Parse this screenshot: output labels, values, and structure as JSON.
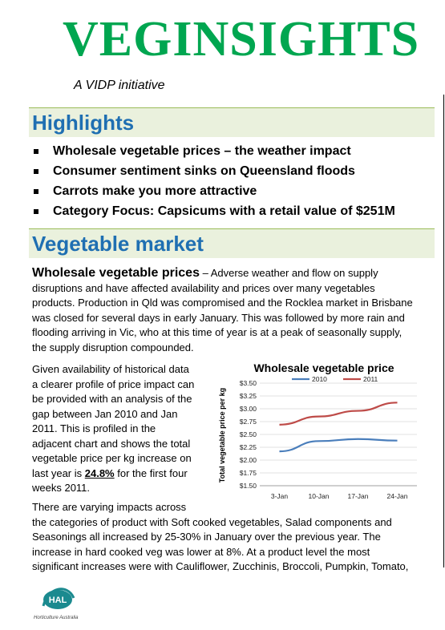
{
  "header": {
    "title": "VEGINSIGHTS",
    "tagline": "A VIDP initiative"
  },
  "highlights": {
    "heading": "Highlights",
    "items": [
      "Wholesale vegetable prices – the weather impact",
      "Consumer sentiment sinks on Queensland floods",
      "Carrots make you more attractive",
      "Category Focus: Capsicums with a retail value of $251M"
    ]
  },
  "market": {
    "heading": "Vegetable market",
    "lead_title": "Wholesale vegetable prices",
    "intro_lines": [
      " – Adverse weather and flow on supply",
      "disruptions and have affected availability and prices over many vegetables",
      "products. Production in Qld was compromised and the Rocklea market in Brisbane",
      "was closed for several days in early January. This was followed by more rain and",
      "flooding arriving in Vic, who at this time of year is at a peak of seasonally supply,",
      "the supply disruption compounded."
    ],
    "left_lines": [
      "Given availability of historical data",
      "a clearer profile of price impact can",
      "be provided with an analysis of the",
      "gap between Jan 2010 and Jan",
      "2011. This is profiled in the",
      "adjacent chart and shows the total",
      "vegetable price per kg increase on"
    ],
    "pct_prefix": "last year is ",
    "pct_value": "24.8%",
    "pct_suffix": " for the first four",
    "pct_line2": "weeks 2011.",
    "bottom_lines": [
      "There are varying impacts across",
      "the categories of product with Soft cooked vegetables, Salad components and",
      "Seasonings all increased by 25-30% in January over the previous year. The",
      "increase in hard cooked veg was lower at 8%. At a product level the most",
      "significant increases were with Cauliflower, Zucchinis, Broccoli, Pumpkin, Tomato,"
    ]
  },
  "chart_data": {
    "type": "line",
    "title": "Wholesale vegetable price",
    "ylabel": "Total vegetable price per kg",
    "xlabel": "",
    "categories": [
      "3-Jan",
      "10-Jan",
      "17-Jan",
      "24-Jan"
    ],
    "y_ticks": [
      "$1.50",
      "$1.75",
      "$2.00",
      "$2.25",
      "$2.50",
      "$2.75",
      "$3.00",
      "$3.25",
      "$3.50"
    ],
    "ylim": [
      1.5,
      3.5
    ],
    "grid": true,
    "legend_position": "top",
    "series": [
      {
        "name": "2010",
        "color": "#4a7ebb",
        "values": [
          2.17,
          2.37,
          2.41,
          2.38
        ]
      },
      {
        "name": "2011",
        "color": "#be4b48",
        "values": [
          2.69,
          2.85,
          2.96,
          3.12
        ]
      }
    ]
  },
  "logo": {
    "text": "HAL",
    "caption": "Horticulture Australia",
    "color": "#1b8a8f"
  }
}
